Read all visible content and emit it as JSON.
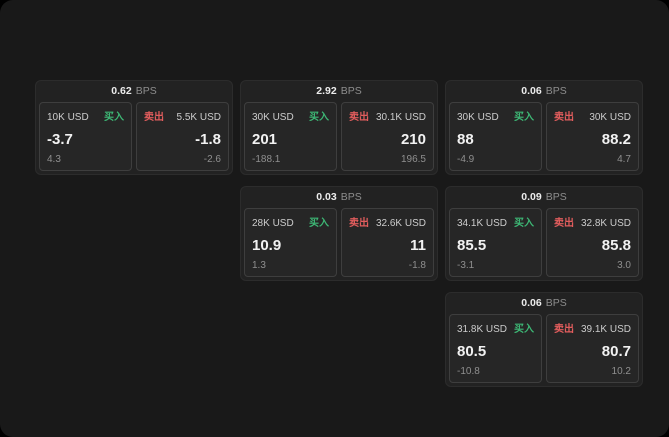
{
  "labels": {
    "bps_unit": "BPS",
    "buy": "买入",
    "sell": "卖出"
  },
  "colors": {
    "buy": "#3db775",
    "sell": "#e25d5d"
  },
  "cards": [
    {
      "bps": "0.62",
      "buy": {
        "amount": "10K USD",
        "price": "-3.7",
        "delta": "4.3"
      },
      "sell": {
        "amount": "5.5K USD",
        "price": "-1.8",
        "delta": "-2.6"
      }
    },
    {
      "bps": "2.92",
      "buy": {
        "amount": "30K USD",
        "price": "201",
        "delta": "-188.1"
      },
      "sell": {
        "amount": "30.1K USD",
        "price": "210",
        "delta": "196.5"
      }
    },
    {
      "bps": "0.06",
      "buy": {
        "amount": "30K USD",
        "price": "88",
        "delta": "-4.9"
      },
      "sell": {
        "amount": "30K USD",
        "price": "88.2",
        "delta": "4.7"
      }
    },
    {
      "bps": "0.03",
      "buy": {
        "amount": "28K USD",
        "price": "10.9",
        "delta": "1.3"
      },
      "sell": {
        "amount": "32.6K USD",
        "price": "11",
        "delta": "-1.8"
      }
    },
    {
      "bps": "0.09",
      "buy": {
        "amount": "34.1K USD",
        "price": "85.5",
        "delta": "-3.1"
      },
      "sell": {
        "amount": "32.8K USD",
        "price": "85.8",
        "delta": "3.0"
      }
    },
    {
      "bps": "0.06",
      "buy": {
        "amount": "31.8K USD",
        "price": "80.5",
        "delta": "-10.8"
      },
      "sell": {
        "amount": "39.1K USD",
        "price": "80.7",
        "delta": "10.2"
      }
    }
  ]
}
